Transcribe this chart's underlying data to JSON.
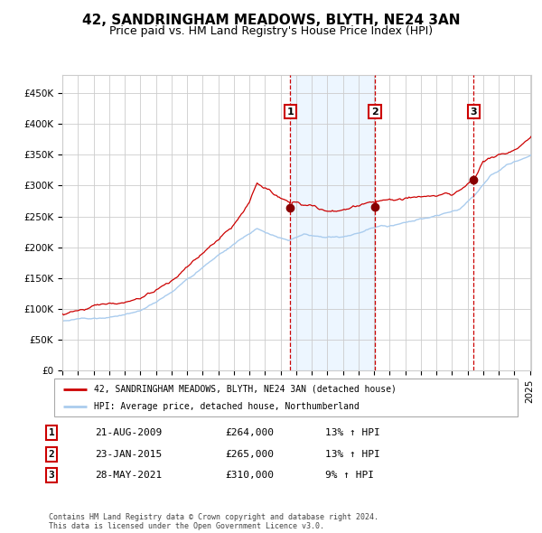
{
  "title": "42, SANDRINGHAM MEADOWS, BLYTH, NE24 3AN",
  "subtitle": "Price paid vs. HM Land Registry's House Price Index (HPI)",
  "title_fontsize": 11,
  "subtitle_fontsize": 9,
  "red_label": "42, SANDRINGHAM MEADOWS, BLYTH, NE24 3AN (detached house)",
  "blue_label": "HPI: Average price, detached house, Northumberland",
  "sale_dates": [
    "2009-08-21",
    "2015-01-23",
    "2021-05-28"
  ],
  "sale_prices": [
    264000,
    265000,
    310000
  ],
  "sale_labels": [
    "1",
    "2",
    "3"
  ],
  "sale_info": [
    [
      "1",
      "21-AUG-2009",
      "£264,000",
      "13% ↑ HPI"
    ],
    [
      "2",
      "23-JAN-2015",
      "£265,000",
      "13% ↑ HPI"
    ],
    [
      "3",
      "28-MAY-2021",
      "£310,000",
      "9% ↑ HPI"
    ]
  ],
  "ylim": [
    0,
    480000
  ],
  "yticks": [
    0,
    50000,
    100000,
    150000,
    200000,
    250000,
    300000,
    350000,
    400000,
    450000
  ],
  "background_color": "#ffffff",
  "grid_color": "#cccccc",
  "red_color": "#cc0000",
  "blue_color": "#aaccee",
  "shade_color": "#ddeeff",
  "vline_color": "#cc0000",
  "dot_color": "#880000",
  "footnote": "Contains HM Land Registry data © Crown copyright and database right 2024.\nThis data is licensed under the Open Government Licence v3.0."
}
